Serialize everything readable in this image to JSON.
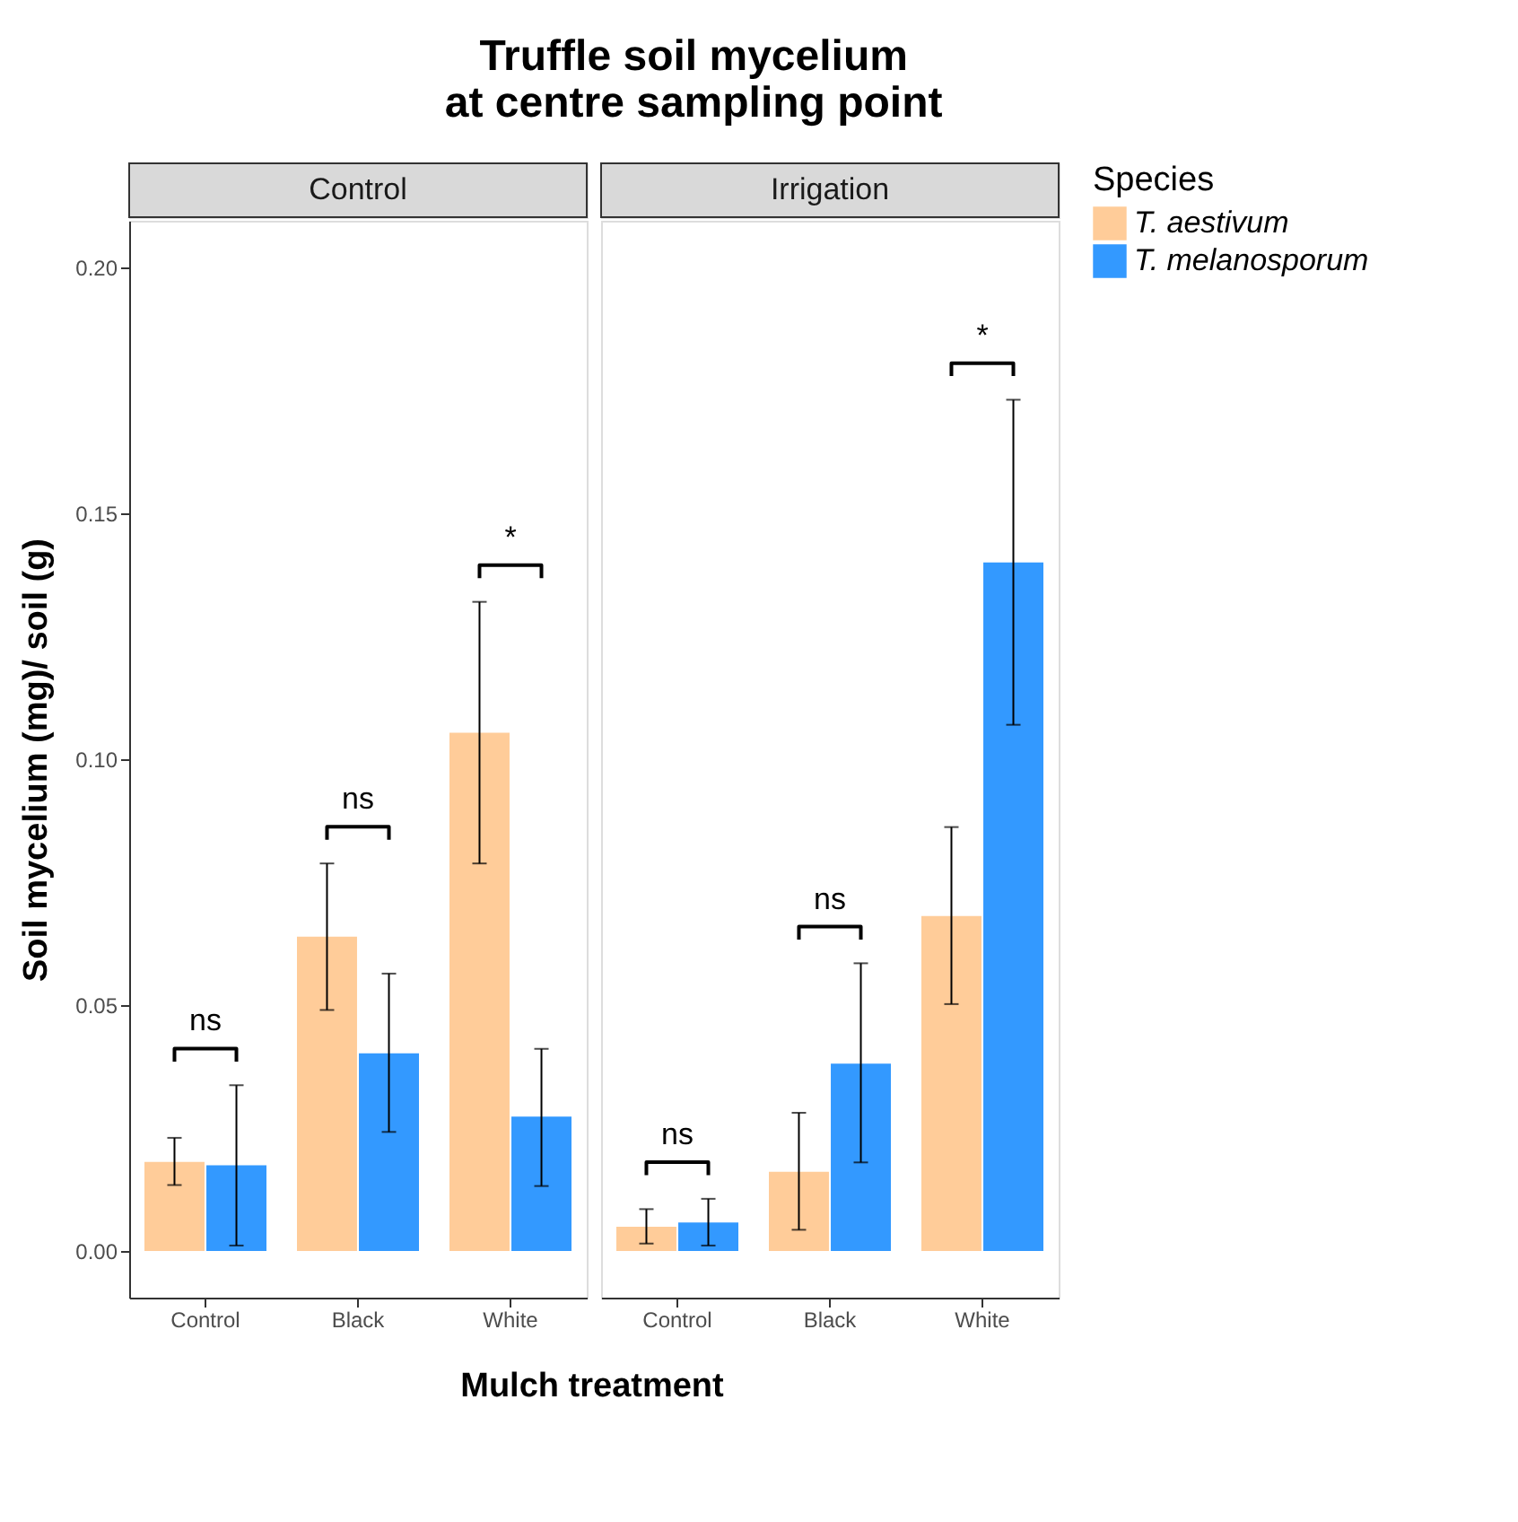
{
  "chart_data": [
    {
      "type": "bar",
      "title": "Truffle soil mycelium\nat centre sampling point",
      "subtitle": "Control",
      "xlabel": "Mulch treatment",
      "ylabel": "Soil mycelium (mg)/ soil (g)",
      "categories": [
        "Control",
        "Black",
        "White"
      ],
      "series": [
        {
          "name": "T. aestivum",
          "color": "#ffcc99",
          "values": [
            0.0181,
            0.0639,
            0.1054
          ],
          "errors": [
            [
              0.0134,
              0.023
            ],
            [
              0.049,
              0.0788
            ],
            [
              0.0788,
              0.132
            ]
          ]
        },
        {
          "name": "T. melanosporum",
          "color": "#3399ff",
          "values": [
            0.0174,
            0.0402,
            0.0273
          ],
          "errors": [
            [
              0.0011,
              0.0337
            ],
            [
              0.0242,
              0.0564
            ],
            [
              0.0132,
              0.0411
            ]
          ]
        }
      ],
      "annotations": [
        "ns",
        "ns",
        "*"
      ],
      "legend": "right",
      "legend_title": "Species",
      "ylim": [
        -0.0095,
        0.2095
      ],
      "yticks": [
        {
          "value": 0,
          "label": "0.00"
        },
        {
          "value": 0.05,
          "label": "0.05"
        },
        {
          "value": 0.1,
          "label": "0.10"
        },
        {
          "value": 0.15,
          "label": "0.15"
        },
        {
          "value": 0.2,
          "label": "0.20"
        }
      ],
      "grid": false
    },
    {
      "type": "bar",
      "subtitle": "Irrigation",
      "categories": [
        "Control",
        "Black",
        "White"
      ],
      "series": [
        {
          "name": "T. aestivum",
          "color": "#ffcc99",
          "values": [
            0.0049,
            0.0161,
            0.0681
          ],
          "errors": [
            [
              0.0015,
              0.0085
            ],
            [
              0.0043,
              0.0281
            ],
            [
              0.0502,
              0.0862
            ]
          ]
        },
        {
          "name": "T. melanosporum",
          "color": "#3399ff",
          "values": [
            0.0058,
            0.0381,
            0.14
          ],
          "errors": [
            [
              0.0011,
              0.0106
            ],
            [
              0.018,
              0.0585
            ],
            [
              0.107,
              0.1731
            ]
          ]
        }
      ],
      "annotations": [
        "ns",
        "ns",
        "*"
      ],
      "ylim": [
        -0.0095,
        0.2095
      ],
      "grid": false,
      "tick_labels": "x"
    }
  ]
}
